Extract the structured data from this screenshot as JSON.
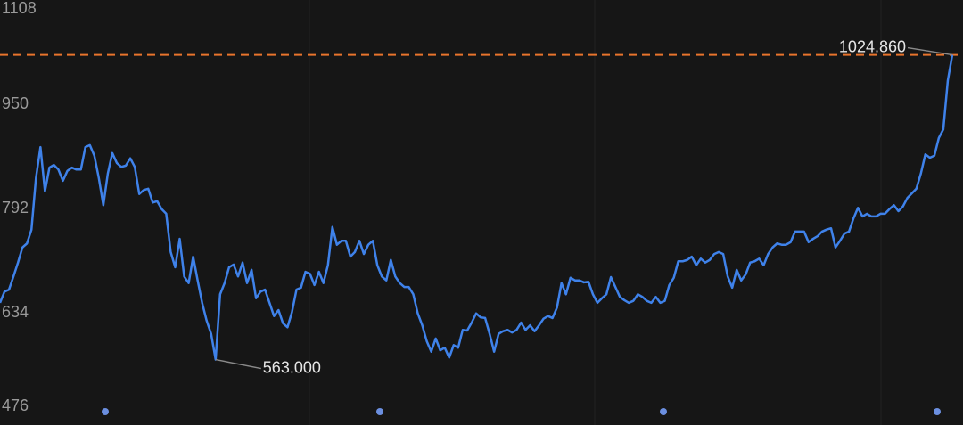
{
  "chart_data": {
    "type": "line",
    "values": [
      649,
      666,
      669,
      689,
      710,
      733,
      739,
      760,
      838,
      885,
      818,
      854,
      858,
      851,
      834,
      849,
      854,
      851,
      851,
      885,
      888,
      872,
      838,
      797,
      845,
      876,
      861,
      855,
      857,
      868,
      855,
      814,
      820,
      822,
      801,
      803,
      791,
      784,
      726,
      703,
      746,
      689,
      679,
      719,
      683,
      649,
      622,
      602,
      563,
      662,
      679,
      703,
      707,
      689,
      710,
      679,
      699,
      656,
      666,
      669,
      649,
      629,
      638,
      618,
      612,
      635,
      669,
      672,
      696,
      693,
      676,
      696,
      679,
      706,
      764,
      737,
      743,
      743,
      719,
      726,
      743,
      723,
      737,
      743,
      706,
      689,
      683,
      714,
      689,
      679,
      673,
      673,
      662,
      633,
      615,
      591,
      575,
      595,
      577,
      581,
      566,
      585,
      581,
      608,
      607,
      619,
      633,
      627,
      626,
      602,
      575,
      602,
      606,
      608,
      604,
      608,
      619,
      608,
      615,
      606,
      615,
      625,
      629,
      626,
      642,
      679,
      662,
      687,
      683,
      683,
      680,
      681,
      662,
      649,
      656,
      662,
      688,
      673,
      658,
      653,
      649,
      652,
      662,
      658,
      652,
      649,
      658,
      649,
      652,
      676,
      687,
      712,
      712,
      714,
      719,
      706,
      716,
      710,
      714,
      723,
      726,
      723,
      689,
      672,
      699,
      683,
      692,
      710,
      712,
      716,
      706,
      723,
      733,
      739,
      737,
      737,
      741,
      757,
      757,
      757,
      741,
      746,
      750,
      757,
      760,
      762,
      733,
      743,
      754,
      757,
      777,
      793,
      780,
      784,
      780,
      780,
      784,
      784,
      791,
      797,
      788,
      795,
      808,
      815,
      822,
      845,
      874,
      869,
      872,
      899,
      912,
      986,
      1024.86
    ],
    "color": "#3f82ea",
    "ylim": [
      476,
      1108
    ],
    "yticks": [
      476,
      634,
      792,
      950,
      1108
    ],
    "reference_line": {
      "value": 1024.86,
      "color": "#e8742c"
    },
    "point_labels": [
      {
        "value": 563,
        "label": "563.000"
      },
      {
        "value": 1024.86,
        "label": "1024.860"
      }
    ]
  }
}
